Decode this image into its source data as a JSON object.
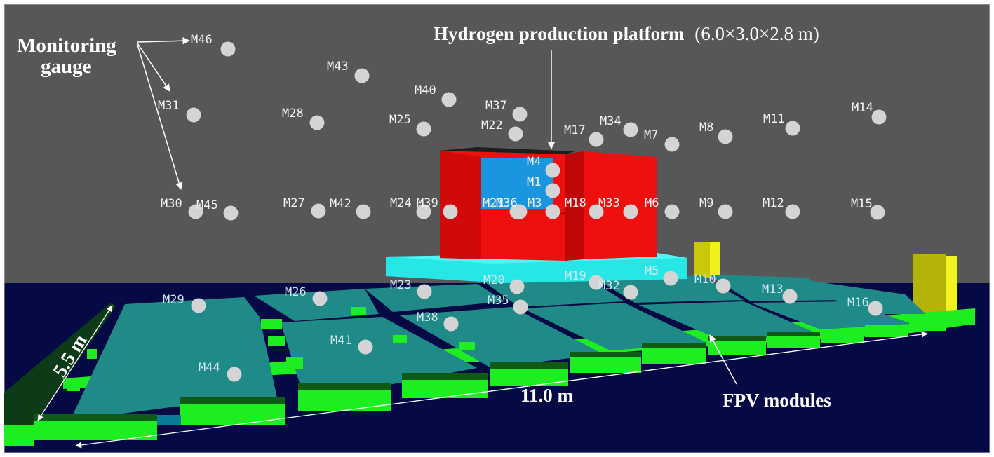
{
  "annotations": {
    "monitoring_line1": "Monitoring",
    "monitoring_line2": "gauge",
    "platform_bold": "Hydrogen production platform",
    "platform_dims": "(6.0×3.0×2.8 m)",
    "fpv": "FPV modules",
    "width_dim": "5.5 m",
    "length_dim": "11.0 m"
  },
  "gauges": [
    {
      "id": "M46",
      "label": "M46"
    },
    {
      "id": "M43",
      "label": "M43"
    },
    {
      "id": "M40",
      "label": "M40"
    },
    {
      "id": "M37",
      "label": "M37"
    },
    {
      "id": "M34",
      "label": "M34"
    },
    {
      "id": "M31",
      "label": "M31"
    },
    {
      "id": "M28",
      "label": "M28"
    },
    {
      "id": "M25",
      "label": "M25"
    },
    {
      "id": "M22",
      "label": "M22"
    },
    {
      "id": "M17",
      "label": "M17"
    },
    {
      "id": "M7",
      "label": "M7"
    },
    {
      "id": "M8",
      "label": "M8"
    },
    {
      "id": "M11",
      "label": "M11"
    },
    {
      "id": "M14",
      "label": "M14"
    },
    {
      "id": "M4",
      "label": "M4"
    },
    {
      "id": "M1",
      "label": "M1"
    },
    {
      "id": "M30",
      "label": "M30"
    },
    {
      "id": "M45",
      "label": "M45"
    },
    {
      "id": "M27",
      "label": "M27"
    },
    {
      "id": "M42",
      "label": "M42"
    },
    {
      "id": "M24",
      "label": "M24"
    },
    {
      "id": "M39",
      "label": "M39"
    },
    {
      "id": "M21",
      "label": "M21"
    },
    {
      "id": "M36",
      "label": "M36"
    },
    {
      "id": "M3",
      "label": "M3"
    },
    {
      "id": "M18",
      "label": "M18"
    },
    {
      "id": "M33",
      "label": "M33"
    },
    {
      "id": "M6",
      "label": "M6"
    },
    {
      "id": "M9",
      "label": "M9"
    },
    {
      "id": "M12",
      "label": "M12"
    },
    {
      "id": "M15",
      "label": "M15"
    },
    {
      "id": "M29",
      "label": "M29"
    },
    {
      "id": "M26",
      "label": "M26"
    },
    {
      "id": "M23",
      "label": "M23"
    },
    {
      "id": "M20",
      "label": "M20"
    },
    {
      "id": "M19",
      "label": "M19"
    },
    {
      "id": "M5",
      "label": "M5"
    },
    {
      "id": "M32",
      "label": "M32"
    },
    {
      "id": "M10",
      "label": "M10"
    },
    {
      "id": "M13",
      "label": "M13"
    },
    {
      "id": "M16",
      "label": "M16"
    },
    {
      "id": "M35",
      "label": "M35"
    },
    {
      "id": "M38",
      "label": "M38"
    },
    {
      "id": "M41",
      "label": "M41"
    },
    {
      "id": "M44",
      "label": "M44"
    }
  ],
  "colors": {
    "background_wall": "#575757",
    "water": "#050a45",
    "fpv_panel": "#1e8a88",
    "float": "#1dee20",
    "platform_red": "#ee0f0f",
    "platform_base": "#26e6e6",
    "window": "#1a95e0",
    "yellow_post": "#e2e20e",
    "gauge": "#d4d4d4"
  }
}
